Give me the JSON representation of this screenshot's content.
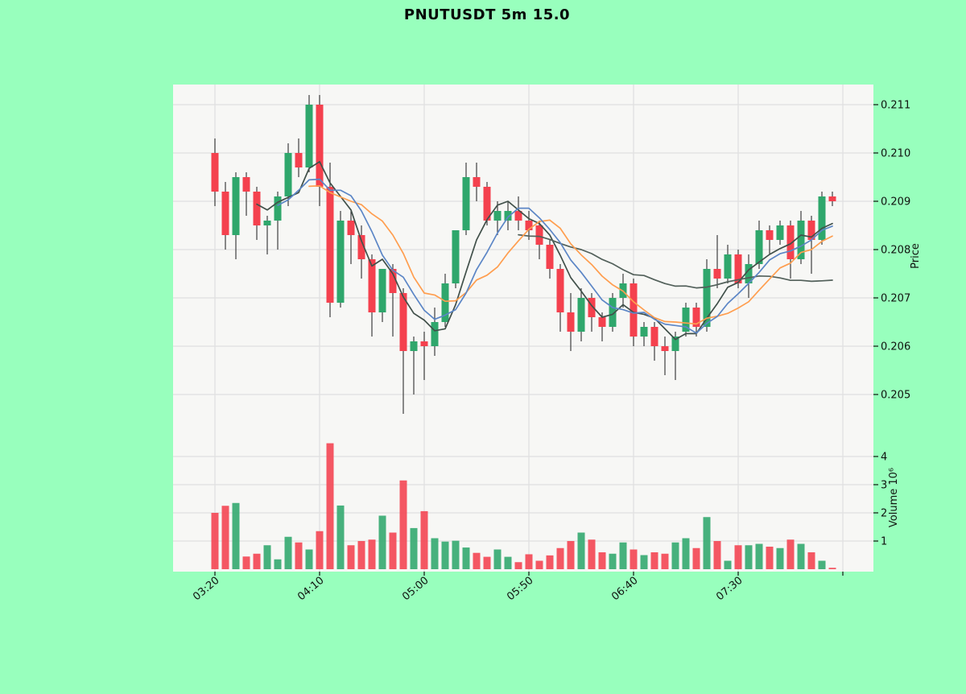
{
  "chart": {
    "title": "PNUTUSDT 5m 15.0",
    "price_axis_label": "Price",
    "volume_axis_label": "Volume 10⁶"
  },
  "chart_data": {
    "type": "candlestick",
    "title": "PNUTUSDT 5m 15.0",
    "interval": "5m",
    "ylabel": "Price",
    "y2label": "Volume 10⁶",
    "grid": true,
    "x_ticks": {
      "indices": [
        0,
        10,
        20,
        30,
        40,
        50,
        60
      ],
      "labels": [
        "03:20",
        "04:10",
        "05:00",
        "05:50",
        "06:40",
        "07:30",
        ""
      ]
    },
    "price_ticks": [
      0.205,
      0.206,
      0.207,
      0.208,
      0.209,
      0.21,
      0.211
    ],
    "price_range": [
      0.2042,
      0.2118
    ],
    "volume_ticks": [
      1,
      2,
      3,
      4
    ],
    "volume_unit": 1000000,
    "columns": [
      "time",
      "open",
      "high",
      "low",
      "close",
      "volume_millions"
    ],
    "candles": [
      [
        "03:20",
        0.21,
        0.2103,
        0.2089,
        0.2092,
        2.0
      ],
      [
        "03:25",
        0.2092,
        0.2094,
        0.208,
        0.2083,
        2.25
      ],
      [
        "03:30",
        0.2083,
        0.2096,
        0.2078,
        0.2095,
        2.35
      ],
      [
        "03:35",
        0.2095,
        0.2096,
        0.2087,
        0.2092,
        0.45
      ],
      [
        "03:40",
        0.2092,
        0.2093,
        0.2082,
        0.2085,
        0.55
      ],
      [
        "03:45",
        0.2085,
        0.2087,
        0.2079,
        0.2086,
        0.85
      ],
      [
        "03:50",
        0.2086,
        0.2092,
        0.208,
        0.2091,
        0.35
      ],
      [
        "03:55",
        0.2091,
        0.2102,
        0.2089,
        0.21,
        1.15
      ],
      [
        "04:00",
        0.21,
        0.2103,
        0.2095,
        0.2097,
        0.95
      ],
      [
        "04:05",
        0.2097,
        0.2112,
        0.2096,
        0.211,
        0.7
      ],
      [
        "04:10",
        0.211,
        0.2112,
        0.2089,
        0.2093,
        1.35
      ],
      [
        "04:15",
        0.2093,
        0.2098,
        0.2066,
        0.2069,
        4.47
      ],
      [
        "04:20",
        0.2069,
        0.2088,
        0.2068,
        0.2086,
        2.26
      ],
      [
        "04:25",
        0.2086,
        0.2088,
        0.2077,
        0.2083,
        0.85
      ],
      [
        "04:30",
        0.2083,
        0.2085,
        0.2074,
        0.2078,
        1.0
      ],
      [
        "04:35",
        0.2078,
        0.2079,
        0.2062,
        0.2067,
        1.05
      ],
      [
        "04:40",
        0.2067,
        0.2076,
        0.2065,
        0.2076,
        1.9
      ],
      [
        "04:45",
        0.2076,
        0.2077,
        0.2062,
        0.2071,
        1.3
      ],
      [
        "04:50",
        0.2071,
        0.2072,
        0.2046,
        0.2059,
        3.15
      ],
      [
        "04:55",
        0.2059,
        0.2062,
        0.205,
        0.2061,
        1.46
      ],
      [
        "05:00",
        0.2061,
        0.2063,
        0.2053,
        0.206,
        2.06
      ],
      [
        "05:05",
        0.206,
        0.2068,
        0.2058,
        0.2065,
        1.1
      ],
      [
        "05:10",
        0.2065,
        0.2075,
        0.2064,
        0.2073,
        0.98
      ],
      [
        "05:15",
        0.2073,
        0.2084,
        0.2072,
        0.2084,
        1.01
      ],
      [
        "05:20",
        0.2084,
        0.2098,
        0.2083,
        0.2095,
        0.77
      ],
      [
        "05:25",
        0.2095,
        0.2098,
        0.209,
        0.2093,
        0.58
      ],
      [
        "05:30",
        0.2093,
        0.2094,
        0.2085,
        0.2086,
        0.44
      ],
      [
        "05:35",
        0.2086,
        0.209,
        0.2083,
        0.2088,
        0.7
      ],
      [
        "05:40",
        0.2086,
        0.209,
        0.2084,
        0.2088,
        0.44
      ],
      [
        "05:45",
        0.2088,
        0.2091,
        0.2084,
        0.2086,
        0.25
      ],
      [
        "05:50",
        0.2086,
        0.2088,
        0.2082,
        0.2084,
        0.53
      ],
      [
        "05:55",
        0.2085,
        0.2086,
        0.2078,
        0.2081,
        0.3
      ],
      [
        "06:00",
        0.2081,
        0.2082,
        0.2074,
        0.2076,
        0.49
      ],
      [
        "06:05",
        0.2076,
        0.2077,
        0.2063,
        0.2067,
        0.75
      ],
      [
        "06:10",
        0.2067,
        0.2071,
        0.2059,
        0.2063,
        1.0
      ],
      [
        "06:15",
        0.2063,
        0.2072,
        0.2061,
        0.207,
        1.3
      ],
      [
        "06:20",
        0.207,
        0.2071,
        0.2063,
        0.2066,
        1.05
      ],
      [
        "06:25",
        0.2066,
        0.2067,
        0.2061,
        0.2064,
        0.6
      ],
      [
        "06:30",
        0.2064,
        0.2071,
        0.2063,
        0.207,
        0.55
      ],
      [
        "06:35",
        0.207,
        0.2075,
        0.2068,
        0.2073,
        0.95
      ],
      [
        "06:40",
        0.2073,
        0.2074,
        0.206,
        0.2062,
        0.7
      ],
      [
        "06:45",
        0.2062,
        0.2065,
        0.206,
        0.2064,
        0.5
      ],
      [
        "06:50",
        0.2064,
        0.2065,
        0.2057,
        0.206,
        0.6
      ],
      [
        "06:55",
        0.206,
        0.2062,
        0.2054,
        0.2059,
        0.55
      ],
      [
        "07:00",
        0.2059,
        0.2063,
        0.2053,
        0.2062,
        0.95
      ],
      [
        "07:05",
        0.2063,
        0.2069,
        0.2062,
        0.2068,
        1.1
      ],
      [
        "07:10",
        0.2068,
        0.2069,
        0.2062,
        0.2064,
        0.75
      ],
      [
        "07:15",
        0.2064,
        0.2078,
        0.2063,
        0.2076,
        1.85
      ],
      [
        "07:20",
        0.2076,
        0.2083,
        0.2072,
        0.2074,
        1.0
      ],
      [
        "07:25",
        0.2074,
        0.2081,
        0.2073,
        0.2079,
        0.3
      ],
      [
        "07:30",
        0.2079,
        0.208,
        0.2072,
        0.2073,
        0.85
      ],
      [
        "07:35",
        0.2073,
        0.2079,
        0.207,
        0.2077,
        0.85
      ],
      [
        "07:40",
        0.2077,
        0.2086,
        0.2076,
        0.2084,
        0.9
      ],
      [
        "07:45",
        0.2084,
        0.2085,
        0.2079,
        0.2082,
        0.8
      ],
      [
        "07:50",
        0.2082,
        0.2086,
        0.2081,
        0.2085,
        0.75
      ],
      [
        "07:55",
        0.2085,
        0.2086,
        0.2074,
        0.2078,
        1.05
      ],
      [
        "08:00",
        0.2078,
        0.2088,
        0.2077,
        0.2086,
        0.9
      ],
      [
        "08:05",
        0.2086,
        0.2087,
        0.2075,
        0.2082,
        0.6
      ],
      [
        "08:10",
        0.2082,
        0.2092,
        0.2081,
        0.2091,
        0.3
      ],
      [
        "08:15",
        0.2091,
        0.2092,
        0.2089,
        0.209,
        0.05
      ]
    ],
    "moving_averages": [
      {
        "name": "ma-5",
        "period": 5,
        "color": "#41504a"
      },
      {
        "name": "ma-30",
        "period": 30,
        "color": "#52605a"
      },
      {
        "name": "ma-10",
        "period": 10,
        "color": "#ff9e4f"
      },
      {
        "name": "ma-7",
        "period": 7,
        "color": "#5c86c6"
      }
    ],
    "colors": {
      "background": "#98ffbd",
      "plot_background": "#f7f7f5",
      "grid": "#e0e0e0",
      "up": "#2fa76c",
      "down": "#f4414e",
      "wick": "#2e2e2e",
      "text": "#10130f"
    }
  }
}
